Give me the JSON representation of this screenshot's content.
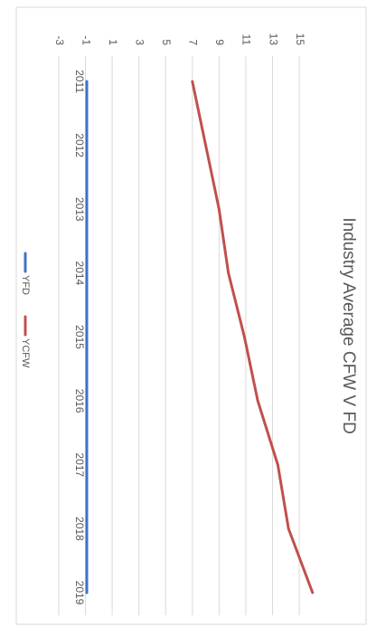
{
  "chart_data": {
    "type": "line",
    "title": "Industry Average CFW V FD",
    "categories": [
      "2011",
      "2012",
      "2013",
      "2014",
      "2015",
      "2016",
      "2017",
      "2018",
      "2019"
    ],
    "series": [
      {
        "name": "YFD",
        "color": "#4472c4",
        "values": [
          -0.9,
          -0.9,
          -0.9,
          -0.9,
          -0.9,
          -0.9,
          -0.9,
          -0.9,
          -0.9
        ]
      },
      {
        "name": "YCFW",
        "color": "#c0504d",
        "values": [
          7,
          8,
          9,
          9.7,
          10.9,
          11.9,
          13.4,
          14.2,
          16
        ]
      }
    ],
    "ylim": [
      -3,
      16.5
    ],
    "yticks": [
      -3,
      -1,
      1,
      3,
      5,
      7,
      9,
      11,
      13,
      15
    ],
    "grid": true,
    "legend": "bottom"
  }
}
